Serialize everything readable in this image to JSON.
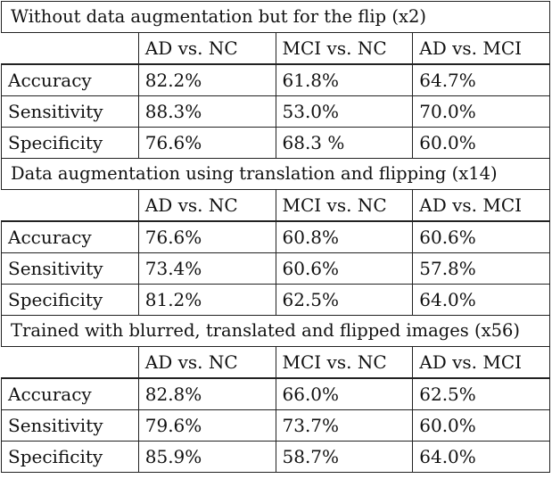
{
  "sections": [
    {
      "title": "Without data augmentation but for the flip (x2)",
      "columns": [
        "AD vs. NC",
        "MCI vs. NC",
        "AD vs. MCI"
      ],
      "rows": [
        {
          "label": "Accuracy",
          "values": [
            "82.2%",
            "61.8%",
            "64.7%"
          ]
        },
        {
          "label": "Sensitivity",
          "values": [
            "88.3%",
            "53.0%",
            "70.0%"
          ]
        },
        {
          "label": "Specificity",
          "values": [
            "76.6%",
            "68.3 %",
            "60.0%"
          ]
        }
      ]
    },
    {
      "title": "Data augmentation using translation and flipping (x14)",
      "columns": [
        "AD vs. NC",
        "MCI vs. NC",
        "AD vs. MCI"
      ],
      "rows": [
        {
          "label": "Accuracy",
          "values": [
            "76.6%",
            "60.8%",
            "60.6%"
          ]
        },
        {
          "label": "Sensitivity",
          "values": [
            "73.4%",
            "60.6%",
            "57.8%"
          ]
        },
        {
          "label": "Specificity",
          "values": [
            "81.2%",
            "62.5%",
            "64.0%"
          ]
        }
      ]
    },
    {
      "title": "Trained with blurred, translated and flipped images (x56)",
      "columns": [
        "AD vs. NC",
        "MCI vs. NC",
        "AD vs. MCI"
      ],
      "rows": [
        {
          "label": "Accuracy",
          "values": [
            "82.8%",
            "66.0%",
            "62.5%"
          ]
        },
        {
          "label": "Sensitivity",
          "values": [
            "79.6%",
            "73.7%",
            "60.0%"
          ]
        },
        {
          "label": "Specificity",
          "values": [
            "85.9%",
            "58.7%",
            "64.0%"
          ]
        }
      ]
    }
  ]
}
